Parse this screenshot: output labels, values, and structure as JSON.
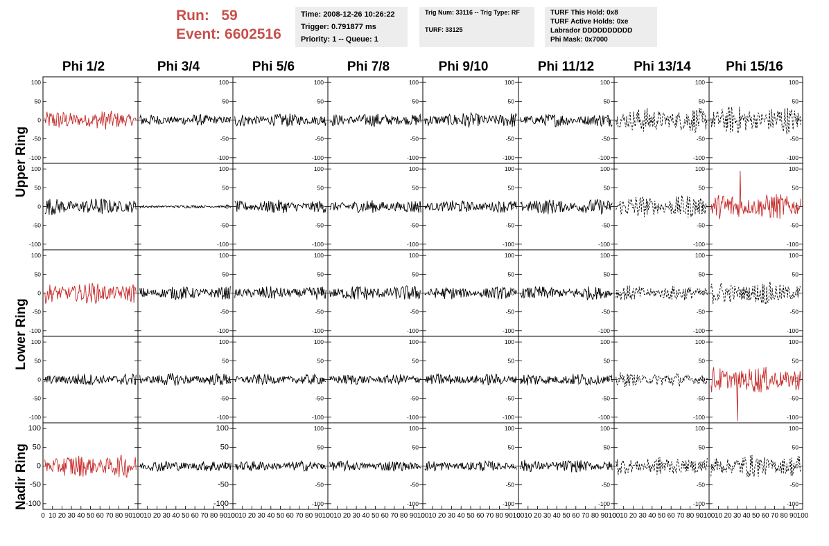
{
  "header": {
    "run_label": "Run:",
    "run_value": "59",
    "event_label": "Event:",
    "event_value": "6602516"
  },
  "info1": {
    "time": "Time: 2008-12-26 10:26:22",
    "trigger": "Trigger: 0.791877 ms",
    "priority": "Priority: 1 -- Queue: 1"
  },
  "info2": {
    "trig": "Trig Num: 33116 -- Trig Type: RF",
    "turf": "TURF: 33125"
  },
  "info3": {
    "hold": "TURF This Hold: 0x8",
    "active": "TURF Active Holds: 0xe",
    "labrador": "Labrador DDDDDDDDDD",
    "mask": "Phi Mask: 0x7000"
  },
  "columns": [
    "Phi 1/2",
    "Phi 3/4",
    "Phi 5/6",
    "Phi 7/8",
    "Phi 9/10",
    "Phi 11/12",
    "Phi 13/14",
    "Phi 15/16"
  ],
  "row_labels": [
    "Upper Ring",
    "Lower Ring",
    "Nadir Ring"
  ],
  "colors": {
    "normal": "#000000",
    "highlight": "#c62828",
    "title_red": "#c8504b",
    "info_bg": "#ededed"
  },
  "chart_data": {
    "type": "line",
    "description_axes": {
      "y_ticks": [
        100,
        50,
        0,
        -50,
        -100
      ],
      "ylim": [
        -115,
        115
      ],
      "x_ticks": [
        0,
        10,
        20,
        30,
        40,
        50,
        60,
        70,
        80,
        90,
        100
      ],
      "xlim": [
        0,
        100
      ]
    },
    "panels_style": [
      [
        "red",
        "black",
        "black",
        "black",
        "black",
        "black",
        "dashed",
        "dashed"
      ],
      [
        "black",
        "black",
        "black",
        "black",
        "black",
        "black",
        "dashed",
        "red"
      ],
      [
        "red",
        "black",
        "black",
        "black",
        "black",
        "black",
        "dashed",
        "dashed"
      ],
      [
        "black",
        "black",
        "black",
        "black",
        "black",
        "black",
        "dashed",
        "red"
      ],
      [
        "red",
        "black",
        "black",
        "black",
        "black",
        "black",
        "dashed",
        "dashed"
      ]
    ],
    "panels_amplitude": [
      [
        20,
        12,
        14,
        14,
        16,
        14,
        26,
        30
      ],
      [
        18,
        3,
        14,
        14,
        13,
        16,
        24,
        28
      ],
      [
        22,
        14,
        14,
        16,
        13,
        14,
        16,
        24
      ],
      [
        13,
        13,
        11,
        11,
        12,
        13,
        15,
        28
      ],
      [
        24,
        12,
        11,
        11,
        11,
        13,
        20,
        24
      ]
    ]
  }
}
